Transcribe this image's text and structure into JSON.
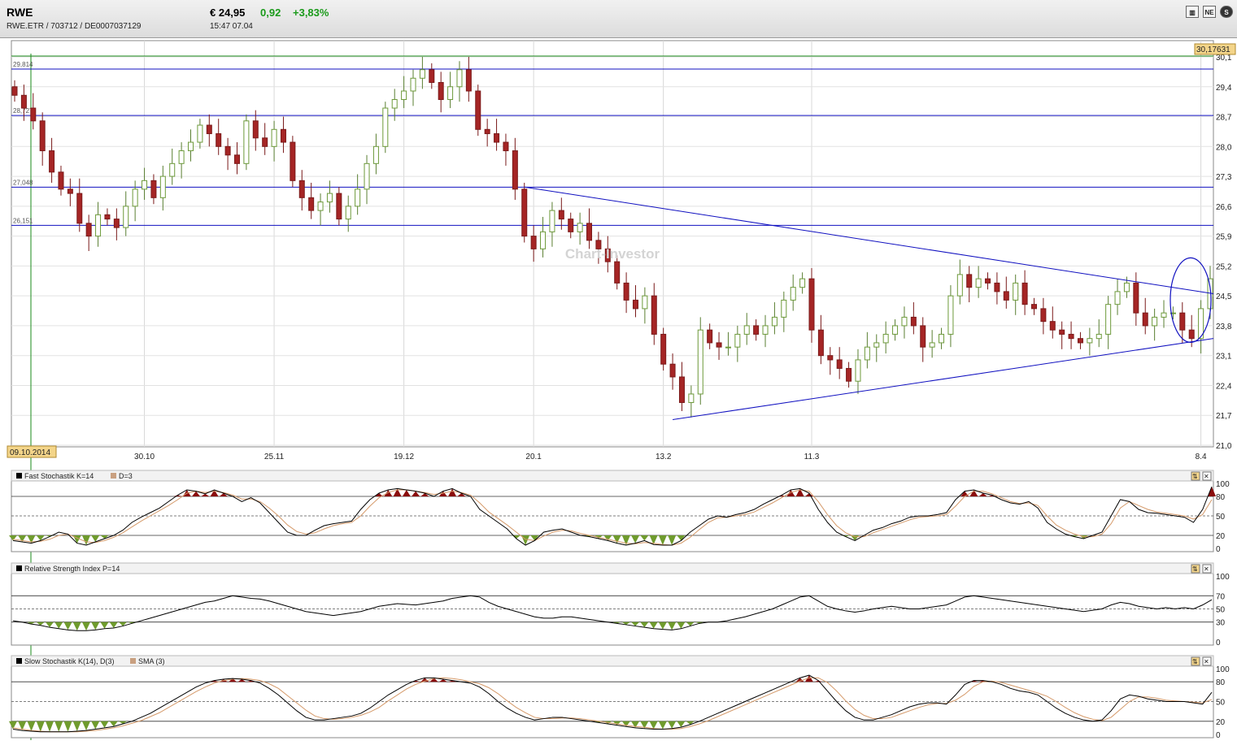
{
  "header": {
    "symbol": "RWE",
    "identifiers": "RWE.ETR  /  703712  /  DE0007037129",
    "price": "€ 24,95",
    "change": "0,92",
    "change_pct": "+3,83%",
    "time": "15:47  07.04",
    "toolbar_icons": [
      "bar-chart-icon",
      "news-icon",
      "settings-icon"
    ],
    "toolbar_labels": [
      "▥",
      "NE",
      "S"
    ]
  },
  "colors": {
    "up": "#8fbf5a",
    "down": "#a52525",
    "line": "#1010c0",
    "green_marker": "#1a8a1a",
    "fill_up": "#8a0d0d",
    "fill_down": "#6f9b2d"
  },
  "chart_data": [
    {
      "type": "candlestick",
      "watermark": "Chart-Investor",
      "date_marker": "09.10.2014",
      "last_price_label": "30,17631",
      "x_tick_labels": [
        "30.10",
        "25.11",
        "19.12",
        "20.1",
        "13.2",
        "11.3",
        "8.4"
      ],
      "y_tick_labels": [
        "30,1",
        "29,4",
        "28,7",
        "28,0",
        "27,3",
        "26,6",
        "25,9",
        "25,2",
        "24,5",
        "23,8",
        "23,1",
        "22,4",
        "21,7",
        "21,0"
      ],
      "ylim": [
        21.0,
        30.1
      ],
      "horizontal_levels": [
        {
          "label": "29,814",
          "value": 29.814
        },
        {
          "label": "28,727",
          "value": 28.727
        },
        {
          "label": "27,048",
          "value": 27.048
        },
        {
          "label": "26,151",
          "value": 26.151
        }
      ],
      "closes": [
        29.2,
        28.9,
        28.6,
        27.9,
        27.4,
        27.0,
        26.9,
        26.2,
        25.9,
        26.4,
        26.3,
        26.1,
        26.6,
        27.0,
        27.2,
        26.8,
        27.3,
        27.6,
        27.9,
        28.1,
        28.5,
        28.3,
        28.0,
        27.8,
        27.6,
        28.6,
        28.2,
        28.0,
        28.4,
        28.1,
        27.2,
        26.8,
        26.5,
        26.7,
        26.9,
        26.3,
        26.6,
        27.0,
        27.6,
        28.0,
        28.9,
        29.1,
        29.3,
        29.6,
        29.8,
        29.5,
        29.1,
        29.4,
        29.8,
        29.3,
        28.4,
        28.3,
        28.1,
        27.9,
        27.0,
        25.9,
        25.6,
        26.0,
        26.5,
        26.3,
        26.0,
        26.2,
        25.8,
        25.6,
        25.3,
        24.8,
        24.4,
        24.2,
        24.5,
        23.6,
        22.9,
        22.6,
        22.0,
        22.2,
        23.7,
        23.4,
        23.3,
        23.3,
        23.6,
        23.8,
        23.6,
        23.8,
        24.0,
        24.4,
        24.7,
        24.9,
        23.7,
        23.1,
        23.0,
        22.8,
        22.5,
        23.0,
        23.3,
        23.4,
        23.6,
        23.8,
        24.0,
        23.8,
        23.3,
        23.4,
        23.6,
        24.5,
        25.0,
        24.7,
        24.9,
        24.8,
        24.6,
        24.4,
        24.8,
        24.3,
        24.2,
        23.9,
        23.7,
        23.6,
        23.5,
        23.4,
        23.5,
        23.6,
        24.3,
        24.6,
        24.8,
        24.1,
        23.8,
        24.0,
        24.1,
        24.1,
        23.7,
        23.5,
        24.2,
        24.9
      ],
      "panel_buttons": [
        "⇅",
        "✕"
      ]
    },
    {
      "type": "line",
      "title": "Fast Stochastik K=14",
      "legend_d": "D=3",
      "y_tick_labels": [
        "100",
        "80",
        "50",
        "20",
        "0"
      ],
      "levels": [
        80,
        50,
        20
      ],
      "ylim": [
        0,
        100
      ],
      "values": [
        12,
        10,
        8,
        12,
        18,
        25,
        22,
        8,
        5,
        10,
        15,
        20,
        28,
        40,
        48,
        55,
        62,
        72,
        82,
        90,
        88,
        84,
        90,
        85,
        80,
        72,
        78,
        70,
        55,
        40,
        25,
        20,
        20,
        28,
        35,
        38,
        40,
        42,
        60,
        75,
        85,
        90,
        92,
        90,
        88,
        85,
        80,
        88,
        92,
        85,
        80,
        60,
        50,
        40,
        30,
        15,
        5,
        12,
        25,
        28,
        30,
        25,
        20,
        18,
        15,
        12,
        8,
        5,
        8,
        12,
        6,
        5,
        5,
        12,
        25,
        35,
        45,
        50,
        48,
        52,
        55,
        60,
        68,
        75,
        82,
        90,
        92,
        85,
        60,
        40,
        25,
        18,
        12,
        20,
        28,
        32,
        38,
        42,
        48,
        50,
        50,
        52,
        55,
        75,
        88,
        90,
        85,
        82,
        75,
        70,
        68,
        72,
        62,
        40,
        30,
        22,
        18,
        15,
        20,
        25,
        50,
        75,
        72,
        60,
        55,
        54,
        52,
        50,
        48,
        40,
        60,
        95
      ],
      "d_values": [
        14,
        12,
        10,
        11,
        14,
        20,
        22,
        16,
        10,
        9,
        12,
        17,
        24,
        33,
        42,
        50,
        58,
        66,
        75,
        85,
        88,
        86,
        88,
        86,
        82,
        76,
        76,
        72,
        62,
        50,
        36,
        26,
        22,
        24,
        30,
        35,
        38,
        40,
        50,
        65,
        78,
        86,
        90,
        90,
        88,
        86,
        83,
        85,
        88,
        86,
        82,
        70,
        56,
        46,
        36,
        25,
        14,
        12,
        19,
        25,
        28,
        27,
        23,
        20,
        17,
        14,
        11,
        8,
        7,
        9,
        8,
        6,
        5,
        8,
        17,
        29,
        40,
        47,
        48,
        50,
        52,
        56,
        63,
        70,
        78,
        86,
        90,
        88,
        72,
        52,
        35,
        24,
        18,
        18,
        24,
        29,
        34,
        39,
        44,
        48,
        49,
        50,
        52,
        65,
        80,
        88,
        88,
        84,
        78,
        72,
        69,
        70,
        66,
        50,
        36,
        28,
        22,
        18,
        18,
        22,
        38,
        62,
        72,
        66,
        60,
        56,
        54,
        52,
        50,
        45,
        52,
        75
      ],
      "panel_buttons": [
        "⇅",
        "✕"
      ]
    },
    {
      "type": "line",
      "title": "Relative Strength Index P=14",
      "y_tick_labels": [
        "100",
        "70",
        "50",
        "30",
        "0"
      ],
      "levels": [
        70,
        50,
        30
      ],
      "ylim": [
        0,
        100
      ],
      "values": [
        32,
        30,
        27,
        25,
        22,
        20,
        18,
        17,
        17,
        18,
        20,
        21,
        24,
        28,
        32,
        36,
        40,
        44,
        48,
        52,
        56,
        60,
        62,
        66,
        70,
        68,
        66,
        65,
        62,
        58,
        54,
        50,
        46,
        44,
        42,
        40,
        42,
        44,
        46,
        50,
        54,
        56,
        58,
        57,
        56,
        58,
        60,
        62,
        66,
        68,
        70,
        68,
        60,
        54,
        50,
        46,
        42,
        38,
        36,
        36,
        38,
        38,
        36,
        34,
        32,
        30,
        28,
        26,
        24,
        22,
        20,
        19,
        18,
        20,
        24,
        28,
        30,
        30,
        32,
        35,
        38,
        42,
        46,
        50,
        56,
        62,
        68,
        70,
        62,
        54,
        50,
        47,
        45,
        47,
        50,
        52,
        54,
        52,
        50,
        50,
        52,
        54,
        56,
        62,
        68,
        70,
        68,
        66,
        64,
        62,
        60,
        58,
        56,
        54,
        52,
        50,
        48,
        46,
        48,
        50,
        56,
        60,
        58,
        54,
        52,
        50,
        52,
        50,
        52,
        50,
        56,
        64
      ],
      "panel_buttons": [
        "⇅",
        "✕"
      ]
    },
    {
      "type": "line",
      "title": "Slow Stochastik K(14), D(3)",
      "legend_sma": "SMA (3)",
      "y_tick_labels": [
        "100",
        "80",
        "50",
        "20",
        "0"
      ],
      "levels": [
        80,
        50,
        20
      ],
      "ylim": [
        0,
        100
      ],
      "values": [
        8,
        6,
        5,
        4,
        4,
        4,
        4,
        5,
        6,
        8,
        10,
        12,
        16,
        20,
        26,
        32,
        40,
        48,
        56,
        64,
        72,
        78,
        82,
        84,
        85,
        84,
        82,
        78,
        70,
        60,
        48,
        36,
        26,
        22,
        22,
        24,
        26,
        28,
        32,
        40,
        50,
        60,
        68,
        76,
        82,
        86,
        86,
        84,
        82,
        80,
        78,
        72,
        62,
        50,
        40,
        32,
        26,
        22,
        24,
        26,
        26,
        24,
        22,
        20,
        18,
        16,
        14,
        12,
        10,
        9,
        8,
        8,
        9,
        11,
        15,
        20,
        26,
        32,
        38,
        44,
        50,
        56,
        62,
        68,
        74,
        80,
        86,
        90,
        82,
        66,
        50,
        36,
        26,
        22,
        22,
        26,
        30,
        36,
        42,
        46,
        48,
        48,
        46,
        60,
        76,
        82,
        82,
        80,
        76,
        70,
        66,
        64,
        60,
        50,
        40,
        32,
        26,
        22,
        20,
        22,
        36,
        54,
        60,
        58,
        54,
        52,
        50,
        50,
        50,
        48,
        46,
        64
      ],
      "d_values": [
        10,
        8,
        6,
        5,
        4,
        4,
        4,
        4,
        5,
        6,
        8,
        10,
        13,
        17,
        21,
        27,
        33,
        41,
        49,
        57,
        65,
        72,
        78,
        82,
        84,
        85,
        84,
        82,
        77,
        70,
        59,
        48,
        37,
        28,
        24,
        23,
        24,
        26,
        29,
        34,
        41,
        51,
        60,
        69,
        76,
        81,
        85,
        86,
        85,
        83,
        80,
        77,
        71,
        62,
        51,
        41,
        33,
        26,
        24,
        24,
        25,
        25,
        24,
        22,
        20,
        18,
        16,
        14,
        12,
        11,
        9,
        8,
        8,
        9,
        12,
        16,
        21,
        27,
        33,
        39,
        45,
        51,
        57,
        63,
        69,
        75,
        81,
        86,
        86,
        79,
        66,
        51,
        38,
        29,
        24,
        24,
        26,
        31,
        36,
        41,
        45,
        47,
        47,
        52,
        61,
        73,
        80,
        81,
        79,
        75,
        71,
        67,
        63,
        58,
        50,
        41,
        33,
        27,
        23,
        21,
        26,
        38,
        50,
        57,
        57,
        55,
        52,
        51,
        50,
        49,
        48,
        53
      ],
      "panel_buttons": [
        "⇅",
        "✕"
      ]
    }
  ]
}
